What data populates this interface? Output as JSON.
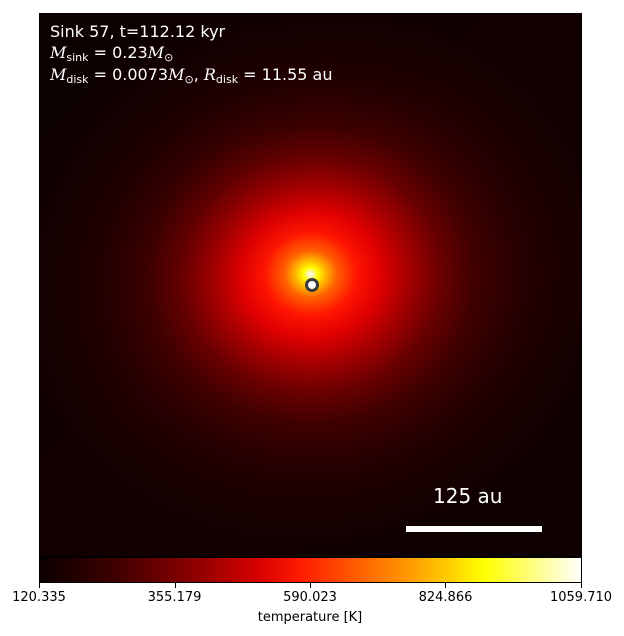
{
  "chart_data": {
    "type": "heatmap",
    "quantity": "temperature",
    "colormap": "hot",
    "sink": {
      "title": "Sink 57, t=112.12 kyr",
      "m_sink_value": "0.23",
      "m_disk_value": "0.0073",
      "r_disk_value": "11.55",
      "unit_msun": "M",
      "unit_au": "au"
    },
    "scale_bar": {
      "label": "125 au",
      "length_au": 125
    },
    "colorbar": {
      "label": "temperature [K]",
      "range": [
        120.335,
        1059.71
      ],
      "ticks": [
        "120.335",
        "355.179",
        "590.023",
        "824.866",
        "1059.710"
      ]
    }
  }
}
